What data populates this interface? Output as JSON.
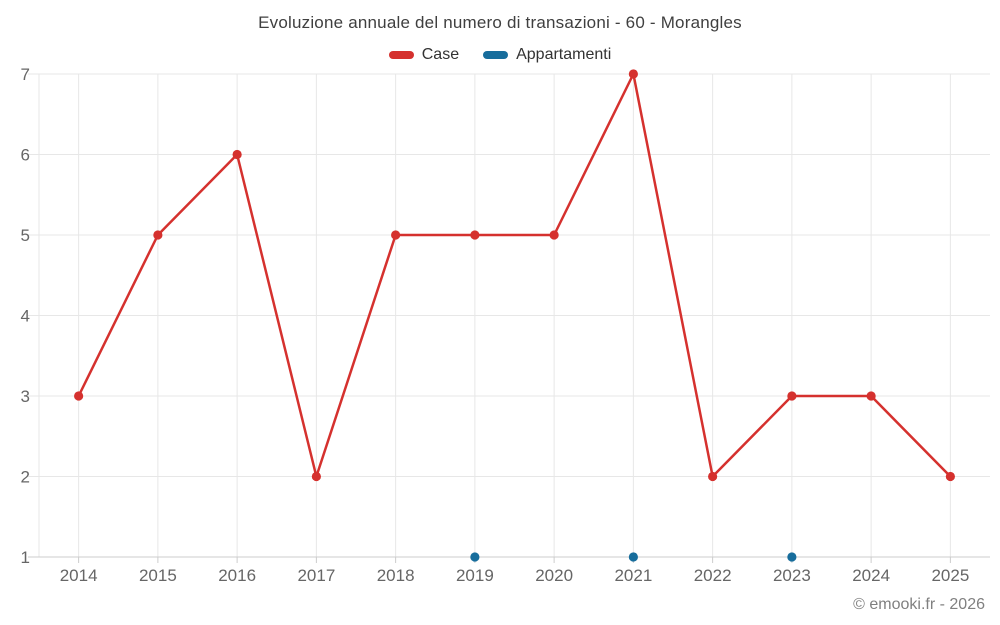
{
  "chart_data": {
    "type": "line",
    "title": "Evoluzione annuale del numero di transazioni - 60 - Morangles",
    "categories": [
      "2014",
      "2015",
      "2016",
      "2017",
      "2018",
      "2019",
      "2020",
      "2021",
      "2022",
      "2023",
      "2024",
      "2025"
    ],
    "series": [
      {
        "name": "Case",
        "color": "#d5312e",
        "values": [
          3,
          5,
          6,
          2,
          5,
          5,
          5,
          7,
          2,
          3,
          3,
          2
        ]
      },
      {
        "name": "Appartamenti",
        "color": "#176d9c",
        "values": [
          null,
          null,
          null,
          null,
          null,
          1,
          null,
          1,
          null,
          1,
          null,
          null
        ]
      }
    ],
    "ylim": [
      1,
      7
    ],
    "yticks": [
      1,
      2,
      3,
      4,
      5,
      6,
      7
    ],
    "grid": true,
    "legend_position": "top"
  },
  "footer": {
    "copyright": "© emooki.fr - 2026"
  }
}
